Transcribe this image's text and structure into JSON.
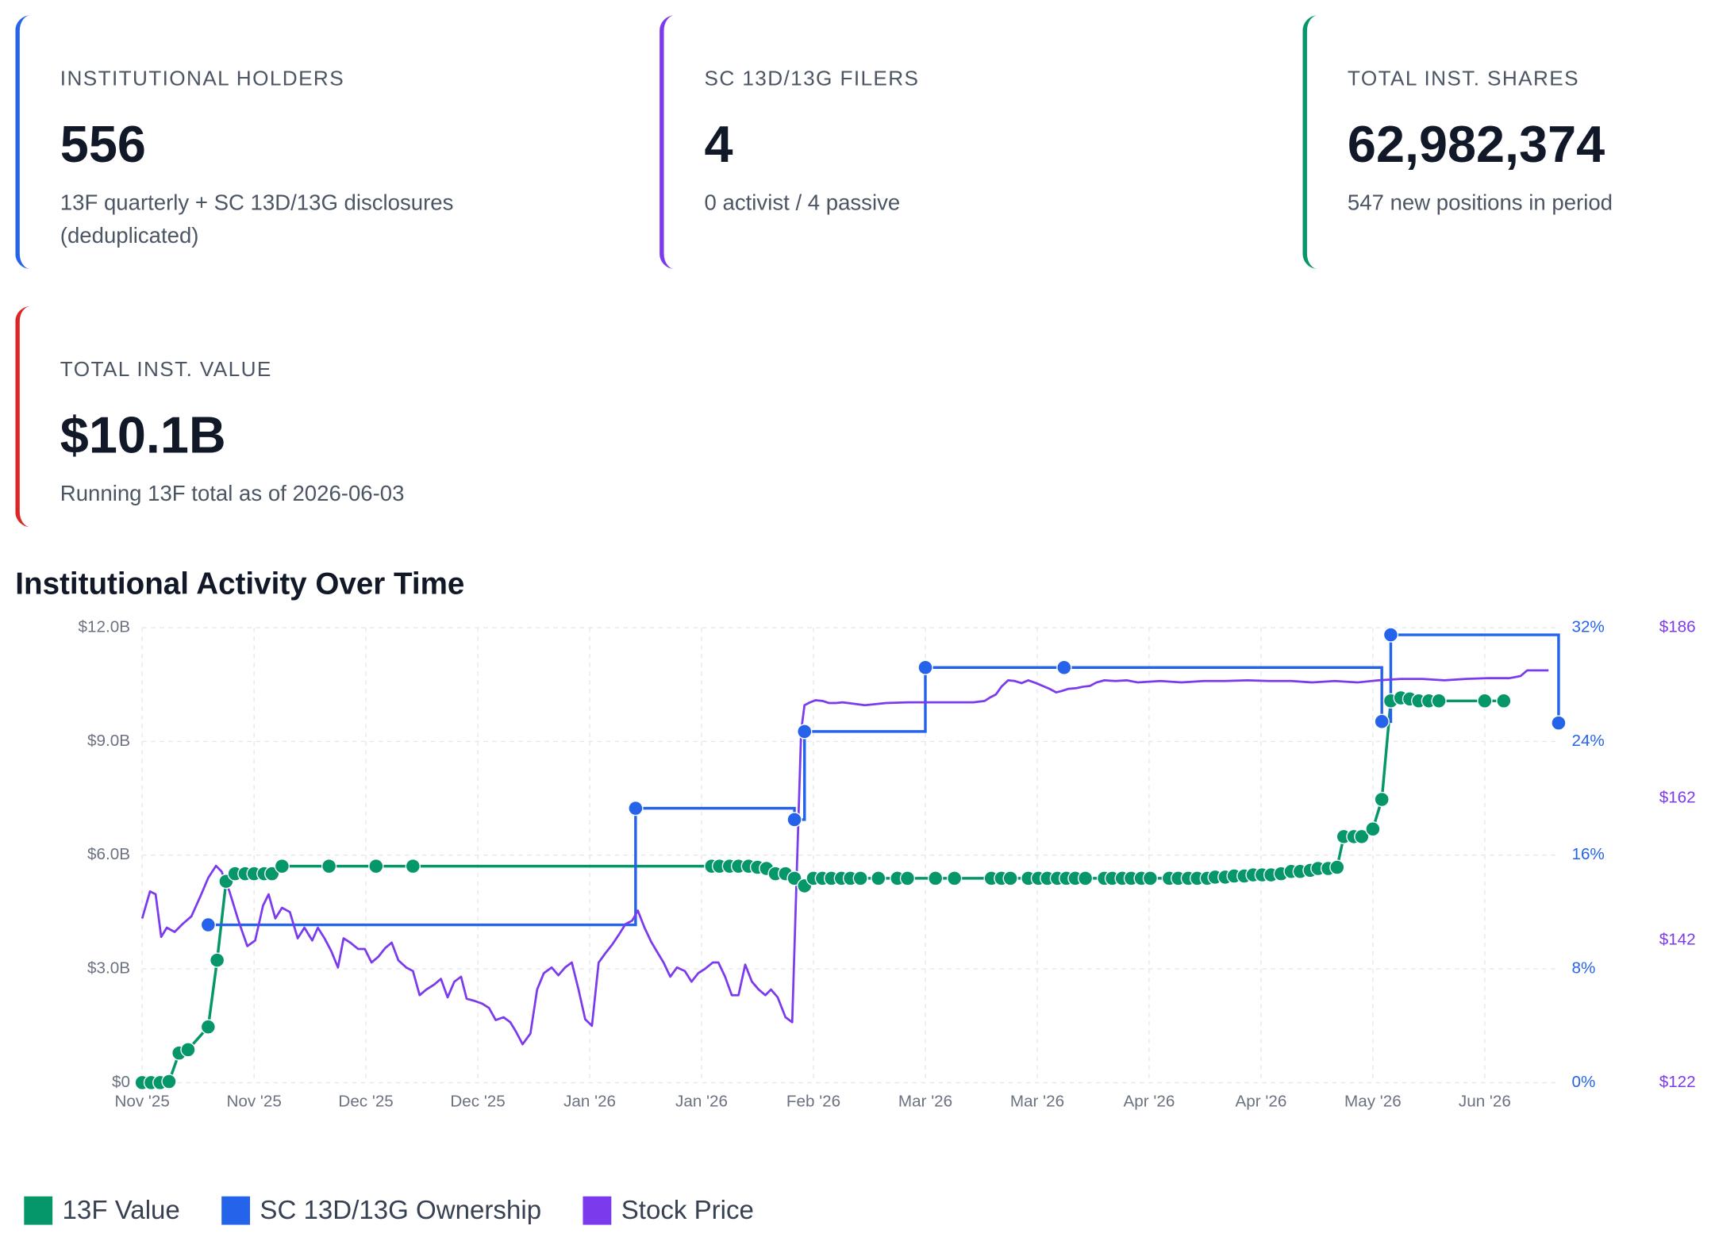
{
  "cards": [
    {
      "label": "INSTITUTIONAL HOLDERS",
      "value": "556",
      "note": "13F quarterly + SC 13D/13G disclosures (deduplicated)",
      "color": "#2563eb"
    },
    {
      "label": "SC 13D/13G FILERS",
      "value": "4",
      "note": "0 activist / 4 passive",
      "color": "#7c3aed"
    },
    {
      "label": "TOTAL INST. SHARES",
      "value": "62,982,374",
      "note": "547 new positions in period",
      "color": "#059669"
    },
    {
      "label": "TOTAL INST. VALUE",
      "value": "$10.1B",
      "note": "Running 13F total as of 2026-06-03",
      "color": "#dc2626"
    }
  ],
  "chart_data": {
    "type": "line",
    "title": "Institutional Activity Over Time",
    "xlim": [
      0,
      12.66
    ],
    "xticks": [
      {
        "value": 0,
        "label": "Nov '25"
      },
      {
        "value": 1,
        "label": "Nov '25"
      },
      {
        "value": 2,
        "label": "Dec '25"
      },
      {
        "value": 3,
        "label": "Dec '25"
      },
      {
        "value": 4,
        "label": "Jan '26"
      },
      {
        "value": 5,
        "label": "Jan '26"
      },
      {
        "value": 6,
        "label": "Feb '26"
      },
      {
        "value": 7,
        "label": "Mar '26"
      },
      {
        "value": 8,
        "label": "Mar '26"
      },
      {
        "value": 9,
        "label": "Apr '26"
      },
      {
        "value": 10,
        "label": "Apr '26"
      },
      {
        "value": 11,
        "label": "May '26"
      },
      {
        "value": 12,
        "label": "Jun '26"
      }
    ],
    "ylim": [
      0,
      12000000000.0
    ],
    "yticks": [
      {
        "value": 0,
        "label": "$0"
      },
      {
        "value": 3000000000.0,
        "label": "$3.0B"
      },
      {
        "value": 6000000000.0,
        "label": "$6.0B"
      },
      {
        "value": 9000000000.0,
        "label": "$9.0B"
      },
      {
        "value": 12000000000.0,
        "label": "$12.0B"
      }
    ],
    "y2lim": [
      0,
      32
    ],
    "y2ticks": [
      {
        "value": 0,
        "label": "0%"
      },
      {
        "value": 8,
        "label": "8%"
      },
      {
        "value": 16,
        "label": "16%"
      },
      {
        "value": 24,
        "label": "24%"
      },
      {
        "value": 32,
        "label": "32%"
      }
    ],
    "y2color": "#2563eb",
    "y3lim": [
      122,
      186
    ],
    "y3ticks": [
      {
        "value": 122,
        "label": "$122"
      },
      {
        "value": 142,
        "label": "$142"
      },
      {
        "value": 162,
        "label": "$162"
      },
      {
        "value": 186,
        "label": "$186"
      }
    ],
    "y3color": "#7c3aed",
    "grid": true,
    "legend": "bottom",
    "series": [
      {
        "name": "13F Value",
        "color": "#059669",
        "markers": true,
        "x": [
          0,
          0.08,
          0.16,
          0.24,
          0.33,
          0.41,
          0.59,
          0.67,
          0.75,
          0.83,
          0.92,
          1.0,
          1.09,
          1.16,
          1.25,
          1.67,
          2.09,
          2.42,
          5.09,
          5.16,
          5.25,
          5.33,
          5.42,
          5.5,
          5.58,
          5.66,
          5.75,
          5.83,
          5.92,
          6.0,
          6.08,
          6.16,
          6.25,
          6.33,
          6.42,
          6.58,
          6.75,
          6.84,
          7.09,
          7.26,
          7.59,
          7.68,
          7.76,
          7.92,
          8.01,
          8.09,
          8.18,
          8.26,
          8.34,
          8.43,
          8.6,
          8.67,
          8.76,
          8.84,
          8.93,
          9.01,
          9.18,
          9.26,
          9.35,
          9.43,
          9.52,
          9.59,
          9.68,
          9.76,
          9.85,
          9.93,
          10.01,
          10.09,
          10.18,
          10.27,
          10.35,
          10.44,
          10.51,
          10.6,
          10.68,
          10.74,
          10.83,
          10.9,
          11.0,
          11.08,
          11.16,
          11.25,
          11.33,
          11.41,
          11.5,
          11.59,
          12.0,
          12.17
        ],
        "values": [
          0,
          0,
          0,
          30000000.0,
          780000000.0,
          870000000.0,
          1470000000.0,
          3230000000.0,
          5310000000.0,
          5510000000.0,
          5510000000.0,
          5510000000.0,
          5510000000.0,
          5510000000.0,
          5710000000.0,
          5710000000.0,
          5710000000.0,
          5710000000.0,
          5710000000.0,
          5710000000.0,
          5710000000.0,
          5710000000.0,
          5710000000.0,
          5680000000.0,
          5650000000.0,
          5510000000.0,
          5510000000.0,
          5390000000.0,
          5190000000.0,
          5390000000.0,
          5390000000.0,
          5390000000.0,
          5390000000.0,
          5390000000.0,
          5390000000.0,
          5390000000.0,
          5390000000.0,
          5390000000.0,
          5390000000.0,
          5390000000.0,
          5390000000.0,
          5390000000.0,
          5390000000.0,
          5390000000.0,
          5390000000.0,
          5390000000.0,
          5390000000.0,
          5390000000.0,
          5390000000.0,
          5390000000.0,
          5390000000.0,
          5390000000.0,
          5390000000.0,
          5390000000.0,
          5390000000.0,
          5390000000.0,
          5390000000.0,
          5390000000.0,
          5390000000.0,
          5390000000.0,
          5390000000.0,
          5420000000.0,
          5420000000.0,
          5450000000.0,
          5450000000.0,
          5480000000.0,
          5480000000.0,
          5480000000.0,
          5510000000.0,
          5570000000.0,
          5570000000.0,
          5600000000.0,
          5650000000.0,
          5650000000.0,
          5680000000.0,
          6490000000.0,
          6490000000.0,
          6490000000.0,
          6690000000.0,
          7470000000.0,
          10070000000.0,
          10150000000.0,
          10120000000.0,
          10070000000.0,
          10070000000.0,
          10070000000.0,
          10070000000.0,
          10070000000.0
        ]
      },
      {
        "name": "SC 13D/13G Ownership",
        "color": "#2563eb",
        "axis": "y2",
        "markers": true,
        "step": "after",
        "x": [
          0.59,
          4.41,
          5.83,
          5.92,
          7.0,
          8.24,
          11.08,
          11.16,
          12.66
        ],
        "values": [
          11.1,
          19.3,
          18.5,
          24.7,
          29.2,
          29.2,
          25.4,
          31.5,
          25.3
        ]
      },
      {
        "name": "Stock Price",
        "color": "#7c3aed",
        "axis": "y3",
        "markers": false,
        "x": [
          0,
          0.07,
          0.12,
          0.17,
          0.22,
          0.29,
          0.36,
          0.44,
          0.52,
          0.59,
          0.66,
          0.71,
          0.78,
          0.86,
          0.94,
          1.01,
          1.08,
          1.13,
          1.19,
          1.25,
          1.32,
          1.39,
          1.45,
          1.52,
          1.57,
          1.63,
          1.69,
          1.75,
          1.8,
          1.86,
          1.93,
          1.99,
          2.05,
          2.11,
          2.17,
          2.23,
          2.29,
          2.36,
          2.42,
          2.48,
          2.54,
          2.61,
          2.67,
          2.73,
          2.79,
          2.85,
          2.9,
          2.97,
          3.04,
          3.1,
          3.16,
          3.23,
          3.29,
          3.34,
          3.4,
          3.47,
          3.53,
          3.59,
          3.66,
          3.72,
          3.78,
          3.84,
          3.9,
          3.96,
          4.02,
          4.08,
          4.14,
          4.2,
          4.26,
          4.32,
          4.38,
          4.43,
          4.49,
          4.55,
          4.61,
          4.66,
          4.72,
          4.78,
          4.85,
          4.91,
          4.97,
          5.03,
          5.1,
          5.15,
          5.21,
          5.27,
          5.33,
          5.39,
          5.45,
          5.51,
          5.57,
          5.62,
          5.68,
          5.75,
          5.81,
          5.85,
          5.89,
          5.92,
          5.97,
          6.02,
          6.08,
          6.14,
          6.2,
          6.26,
          6.46,
          6.65,
          6.85,
          7.04,
          7.24,
          7.43,
          7.53,
          7.58,
          7.63,
          7.68,
          7.74,
          7.8,
          7.86,
          7.92,
          7.99,
          8.05,
          8.11,
          8.17,
          8.22,
          8.28,
          8.35,
          8.41,
          8.47,
          8.53,
          8.6,
          8.7,
          8.8,
          8.9,
          9.1,
          9.29,
          9.49,
          9.68,
          9.88,
          10.07,
          10.27,
          10.46,
          10.66,
          10.86,
          11.05,
          11.25,
          11.44,
          11.64,
          11.83,
          12.03,
          12.22,
          12.32,
          12.38,
          12.47,
          12.57
        ],
        "values": [
          145.1,
          148.9,
          148.5,
          142.5,
          143.8,
          143.2,
          144.3,
          145.4,
          148.2,
          150.8,
          152.5,
          151.7,
          148.9,
          144.8,
          141.2,
          142.0,
          146.9,
          148.5,
          145.1,
          146.6,
          146.0,
          142.3,
          143.8,
          142.0,
          143.8,
          142.3,
          140.5,
          138.2,
          142.3,
          141.7,
          140.8,
          140.8,
          138.9,
          139.7,
          140.9,
          141.7,
          139.2,
          138.2,
          137.7,
          134.3,
          135.1,
          135.8,
          136.6,
          134.0,
          136.2,
          136.9,
          133.8,
          133.5,
          133.1,
          132.5,
          130.8,
          131.2,
          130.5,
          129.2,
          127.4,
          128.9,
          135.1,
          137.4,
          138.2,
          137.1,
          138.2,
          138.9,
          135.1,
          130.9,
          130.0,
          138.9,
          140.2,
          141.4,
          142.8,
          144.3,
          144.8,
          146.2,
          143.8,
          141.8,
          140.2,
          138.9,
          136.9,
          138.2,
          137.7,
          136.2,
          137.4,
          138.0,
          138.9,
          138.9,
          136.9,
          134.3,
          134.3,
          138.6,
          136.2,
          135.1,
          134.3,
          135.1,
          134.0,
          131.2,
          130.5,
          151.2,
          171.5,
          175.1,
          175.5,
          175.8,
          175.7,
          175.4,
          175.4,
          175.5,
          175.1,
          175.4,
          175.5,
          175.5,
          175.5,
          175.5,
          175.7,
          176.2,
          176.6,
          177.7,
          178.6,
          178.5,
          178.2,
          178.6,
          178.2,
          177.8,
          177.4,
          176.9,
          177.1,
          177.4,
          177.5,
          177.7,
          177.8,
          178.3,
          178.6,
          178.5,
          178.6,
          178.3,
          178.5,
          178.3,
          178.5,
          178.5,
          178.6,
          178.5,
          178.5,
          178.3,
          178.5,
          178.3,
          178.6,
          178.8,
          178.8,
          178.6,
          178.8,
          178.9,
          178.9,
          179.2,
          180.0,
          180.0,
          180.0
        ]
      }
    ]
  }
}
